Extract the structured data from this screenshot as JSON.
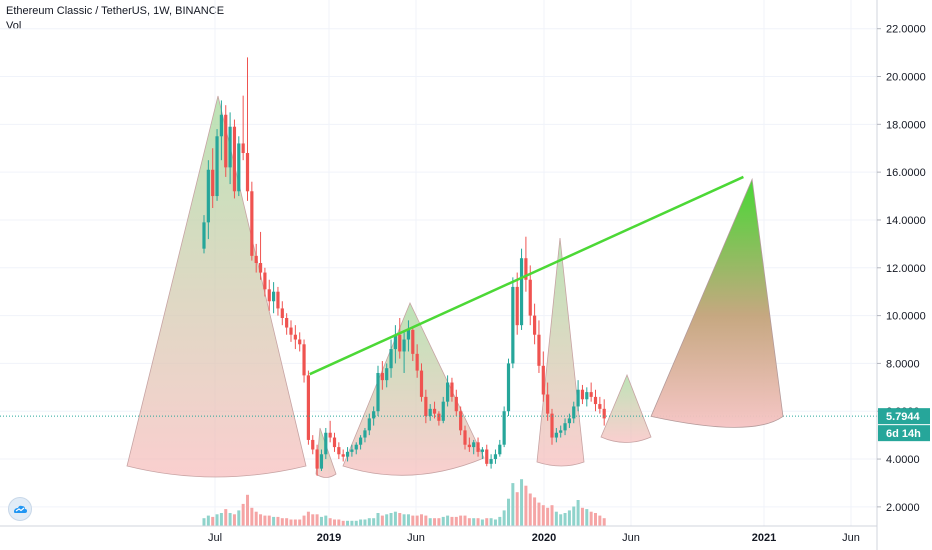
{
  "header": {
    "title": "Ethereum Classic / TetherUS, 1W, BINANCE",
    "indicator": "Vol"
  },
  "chart_data": {
    "type": "candlestick",
    "ylim": [
      1.2,
      23.2
    ],
    "y_ticks": [
      "22.0000",
      "20.0000",
      "18.0000",
      "16.0000",
      "14.0000",
      "12.0000",
      "10.0000",
      "8.0000",
      "6.0000",
      "4.0000",
      "2.0000"
    ],
    "y_tick_values": [
      22,
      20,
      18,
      16,
      14,
      12,
      10,
      8,
      6,
      4,
      2
    ],
    "x_ticks": [
      "Jul",
      "2019",
      "Jun",
      "2020",
      "Jun",
      "2021",
      "Jun"
    ],
    "current_price": "5.7944",
    "current_price_value": 5.7944,
    "countdown": "6d 14h",
    "colors": {
      "up": "#26a69a",
      "down": "#ef5350",
      "trendline": "#4cd836",
      "price_line": "#26a69a",
      "axis_text": "#131722"
    },
    "candles_weekly": [
      [
        12.8,
        14.2,
        12.6,
        13.9
      ],
      [
        13.9,
        16.5,
        13.2,
        16.1
      ],
      [
        16.1,
        17.0,
        14.5,
        15.0
      ],
      [
        15.0,
        17.8,
        14.8,
        17.5
      ],
      [
        17.5,
        19.0,
        16.5,
        18.4
      ],
      [
        18.4,
        18.8,
        15.8,
        16.2
      ],
      [
        16.2,
        18.5,
        15.5,
        17.9
      ],
      [
        17.9,
        18.2,
        14.9,
        15.2
      ],
      [
        15.2,
        17.5,
        15.0,
        17.2
      ],
      [
        17.2,
        19.2,
        16.5,
        16.8
      ],
      [
        16.8,
        20.8,
        14.8,
        15.2
      ],
      [
        15.2,
        15.6,
        12.3,
        12.5
      ],
      [
        12.5,
        13.0,
        11.8,
        12.2
      ],
      [
        12.2,
        13.5,
        11.5,
        11.8
      ],
      [
        11.8,
        12.0,
        10.8,
        11.1
      ],
      [
        11.1,
        11.5,
        10.2,
        10.6
      ],
      [
        10.6,
        11.4,
        10.1,
        11.0
      ],
      [
        11.0,
        11.2,
        10.0,
        10.3
      ],
      [
        10.3,
        10.6,
        9.6,
        9.9
      ],
      [
        9.9,
        10.1,
        9.2,
        9.5
      ],
      [
        9.5,
        9.8,
        8.9,
        9.2
      ],
      [
        9.2,
        9.6,
        8.6,
        9.0
      ],
      [
        9.0,
        9.3,
        8.5,
        8.8
      ],
      [
        8.8,
        9.0,
        7.2,
        7.5
      ],
      [
        7.5,
        7.7,
        4.6,
        4.8
      ],
      [
        4.8,
        5.0,
        4.2,
        4.4
      ],
      [
        4.4,
        4.6,
        3.3,
        3.6
      ],
      [
        3.6,
        4.4,
        3.5,
        4.2
      ],
      [
        4.2,
        5.3,
        4.0,
        5.1
      ],
      [
        5.1,
        5.6,
        4.7,
        4.9
      ],
      [
        4.9,
        5.1,
        4.3,
        4.5
      ],
      [
        4.5,
        4.7,
        4.0,
        4.2
      ],
      [
        4.2,
        4.4,
        3.9,
        4.1
      ],
      [
        4.1,
        4.5,
        3.9,
        4.3
      ],
      [
        4.3,
        4.6,
        4.1,
        4.4
      ],
      [
        4.4,
        4.7,
        4.2,
        4.6
      ],
      [
        4.6,
        5.0,
        4.4,
        4.9
      ],
      [
        4.9,
        5.3,
        4.7,
        5.2
      ],
      [
        5.2,
        5.9,
        5.0,
        5.7
      ],
      [
        5.7,
        6.2,
        5.4,
        6.0
      ],
      [
        6.0,
        7.9,
        5.8,
        7.6
      ],
      [
        7.6,
        8.1,
        6.9,
        7.3
      ],
      [
        7.3,
        8.0,
        7.0,
        7.8
      ],
      [
        7.8,
        9.0,
        7.4,
        8.6
      ],
      [
        8.6,
        9.6,
        8.0,
        9.2
      ],
      [
        9.2,
        9.9,
        8.2,
        8.5
      ],
      [
        8.5,
        9.4,
        7.6,
        9.0
      ],
      [
        9.0,
        9.8,
        8.5,
        9.4
      ],
      [
        9.4,
        9.5,
        8.1,
        8.4
      ],
      [
        8.4,
        8.8,
        7.4,
        7.7
      ],
      [
        7.7,
        8.0,
        6.4,
        6.6
      ],
      [
        6.6,
        6.9,
        5.5,
        5.8
      ],
      [
        5.8,
        6.3,
        5.6,
        6.1
      ],
      [
        6.1,
        6.4,
        5.7,
        5.9
      ],
      [
        5.9,
        6.0,
        5.4,
        5.6
      ],
      [
        5.6,
        6.6,
        5.5,
        6.4
      ],
      [
        6.4,
        7.5,
        6.2,
        7.2
      ],
      [
        7.2,
        7.4,
        6.4,
        6.6
      ],
      [
        6.6,
        6.9,
        5.8,
        6.0
      ],
      [
        6.0,
        6.2,
        5.0,
        5.2
      ],
      [
        5.2,
        5.4,
        4.4,
        4.6
      ],
      [
        4.6,
        4.9,
        4.3,
        4.5
      ],
      [
        4.5,
        4.8,
        4.2,
        4.7
      ],
      [
        4.7,
        4.9,
        4.1,
        4.3
      ],
      [
        4.3,
        4.5,
        4.0,
        4.4
      ],
      [
        4.4,
        4.6,
        3.7,
        3.8
      ],
      [
        3.8,
        4.2,
        3.6,
        4.0
      ],
      [
        4.0,
        4.4,
        3.8,
        4.2
      ],
      [
        4.2,
        4.8,
        4.1,
        4.6
      ],
      [
        4.6,
        6.2,
        4.5,
        6.0
      ],
      [
        6.0,
        8.2,
        5.8,
        8.0
      ],
      [
        8.0,
        11.6,
        7.8,
        11.2
      ],
      [
        11.2,
        11.8,
        9.2,
        9.6
      ],
      [
        9.6,
        12.8,
        9.4,
        12.4
      ],
      [
        12.4,
        13.3,
        11.0,
        11.5
      ],
      [
        11.5,
        12.1,
        9.6,
        10.0
      ],
      [
        10.0,
        10.5,
        8.8,
        9.2
      ],
      [
        9.2,
        9.8,
        7.6,
        7.9
      ],
      [
        7.9,
        8.5,
        6.4,
        6.7
      ],
      [
        6.7,
        7.2,
        5.6,
        5.9
      ],
      [
        5.9,
        6.1,
        4.6,
        4.9
      ],
      [
        4.9,
        5.3,
        4.7,
        5.1
      ],
      [
        5.1,
        5.4,
        4.9,
        5.2
      ],
      [
        5.2,
        5.7,
        5.0,
        5.5
      ],
      [
        5.5,
        5.9,
        5.3,
        5.7
      ],
      [
        5.7,
        6.4,
        5.5,
        6.2
      ],
      [
        6.2,
        7.3,
        6.0,
        6.9
      ],
      [
        6.9,
        7.1,
        6.3,
        6.5
      ],
      [
        6.5,
        7.0,
        6.2,
        6.8
      ],
      [
        6.8,
        7.2,
        6.4,
        6.6
      ],
      [
        6.6,
        6.9,
        6.0,
        6.3
      ],
      [
        6.3,
        6.6,
        5.9,
        6.1
      ],
      [
        6.1,
        6.5,
        5.4,
        5.7
      ]
    ],
    "volumes_weekly": [
      0.6,
      0.8,
      0.7,
      0.9,
      1.0,
      1.3,
      1.0,
      0.9,
      1.2,
      1.7,
      2.4,
      1.4,
      1.1,
      0.9,
      0.8,
      0.8,
      0.7,
      0.7,
      0.6,
      0.6,
      0.5,
      0.5,
      0.5,
      0.8,
      1.1,
      0.9,
      0.9,
      0.7,
      0.8,
      0.6,
      0.5,
      0.5,
      0.4,
      0.4,
      0.4,
      0.4,
      0.5,
      0.5,
      0.6,
      0.6,
      1.0,
      0.8,
      0.9,
      1.0,
      1.1,
      1.0,
      0.9,
      0.9,
      0.8,
      0.8,
      0.9,
      0.8,
      0.6,
      0.6,
      0.6,
      0.7,
      0.8,
      0.7,
      0.7,
      0.8,
      0.8,
      0.6,
      0.6,
      0.6,
      0.5,
      0.6,
      0.6,
      0.5,
      0.7,
      1.2,
      2.1,
      3.3,
      2.6,
      3.6,
      3.1,
      2.5,
      2.2,
      1.8,
      1.6,
      1.4,
      1.6,
      1.1,
      0.9,
      1.0,
      1.2,
      1.5,
      2.0,
      1.4,
      1.3,
      1.1,
      1.0,
      0.8,
      0.6
    ],
    "trendline": {
      "from": {
        "week": 24.3,
        "price": 7.55
      },
      "to": {
        "week": 124,
        "price": 15.8
      }
    },
    "projection_cone": {
      "apex_week": 126,
      "apex_price": 15.7,
      "base_price": 5.7
    }
  }
}
